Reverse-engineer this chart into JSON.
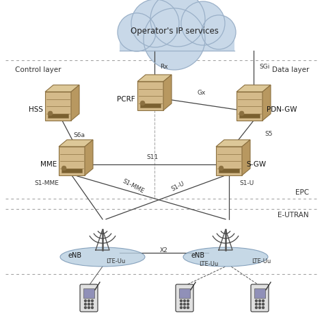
{
  "background_color": "#ffffff",
  "cloud_text": "Operator's IP services",
  "control_layer_label": "Control layer",
  "data_layer_label": "Data layer",
  "epc_label": "EPC",
  "eutran_label": "E-UTRAN",
  "server_color_front": "#d4ba8a",
  "server_color_top": "#ddc898",
  "server_color_side": "#b89860",
  "server_edge_color": "#8b7040",
  "cloud_fill": "#c8d8e8",
  "cloud_edge": "#9ab0c8",
  "ellipse_fill": "#b8cfe0",
  "ellipse_edge": "#7090b0",
  "line_color": "#444444",
  "dashed_color": "#888888",
  "figsize": [
    4.74,
    4.7
  ],
  "dpi": 100
}
